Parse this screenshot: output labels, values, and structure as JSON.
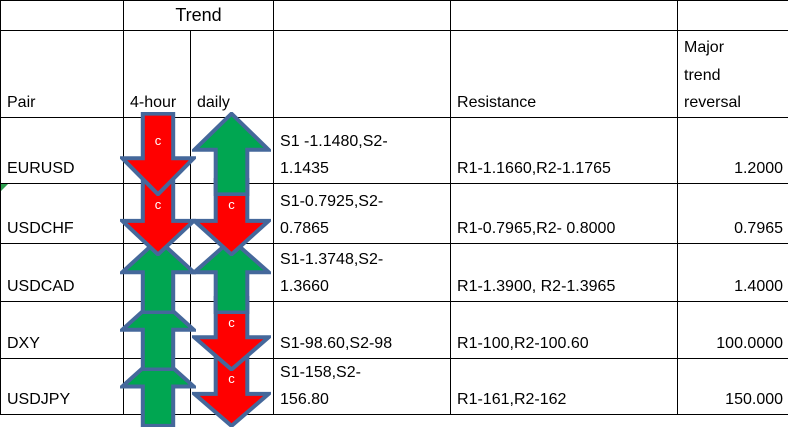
{
  "colors": {
    "up_fill": "#00A651",
    "down_fill": "#FF0000",
    "arrow_outline": "#45689B",
    "error_marker": "#2E9E4F"
  },
  "header": {
    "trend": "Trend",
    "pair": "Pair",
    "four_hour": "4-hour",
    "daily": "daily",
    "support": "",
    "resistance": "Resistance",
    "major_trend_reversal": "Major\ntrend\nreversal"
  },
  "arrow_label": "c",
  "rows": [
    {
      "pair": "EURUSD",
      "four_hour": "down",
      "daily": "up",
      "support": "S1 -1.1480,S2-\n1.1435",
      "resistance": "R1-1.1660,R2-1.1765",
      "major": "1.2000"
    },
    {
      "pair": "USDCHF",
      "four_hour": "down",
      "daily": "down",
      "support": "S1-0.7925,S2-\n0.7865",
      "resistance": "R1-0.7965,R2- 0.8000",
      "major": "0.7965"
    },
    {
      "pair": "USDCAD",
      "four_hour": "up",
      "daily": "up",
      "support": "S1-1.3748,S2-\n1.3660",
      "resistance": "R1-1.3900, R2-1.3965",
      "major": "1.4000"
    },
    {
      "pair": "DXY",
      "four_hour": "up",
      "daily": "down",
      "support": "S1-98.60,S2-98",
      "resistance": "R1-100,R2-100.60",
      "major": "100.0000"
    },
    {
      "pair": "USDJPY",
      "four_hour": "up",
      "daily": "down",
      "support": "S1-158,S2-\n156.80",
      "resistance": "R1-161,R2-162",
      "major": "150.000"
    }
  ]
}
